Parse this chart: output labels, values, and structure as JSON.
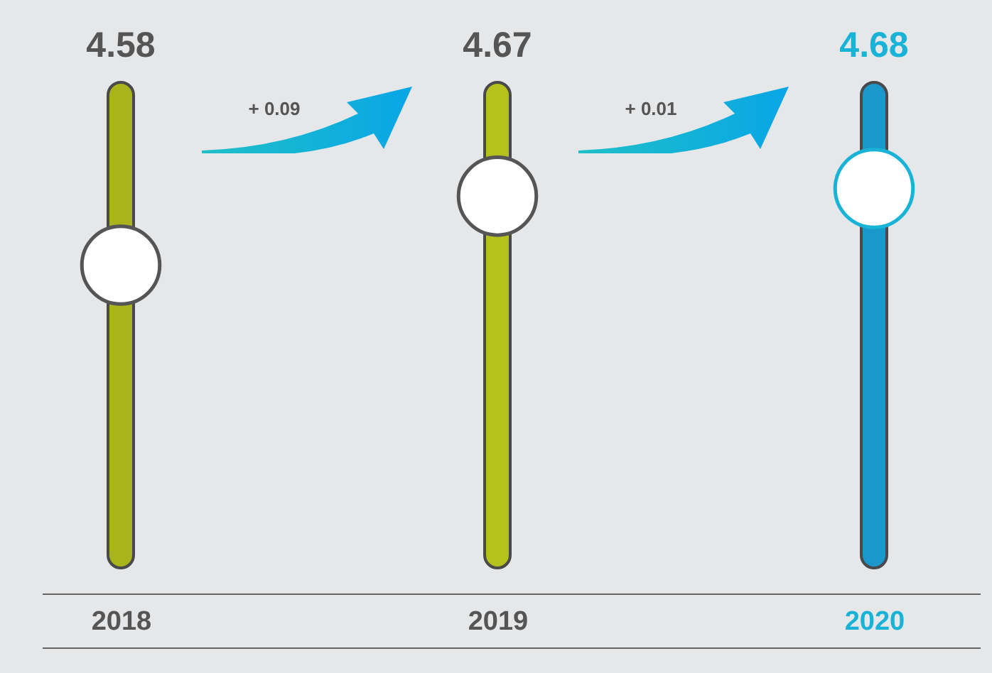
{
  "chart_data": {
    "type": "scatter",
    "categories": [
      "2018",
      "2019",
      "2020"
    ],
    "values": [
      4.58,
      4.67,
      4.68
    ],
    "colors": [
      "#555555",
      "#555555",
      "#1ab3d8"
    ],
    "data_labels": true,
    "marker": "circle",
    "annotations": [
      "+ 0.09",
      "+ 0.01"
    ]
  }
}
